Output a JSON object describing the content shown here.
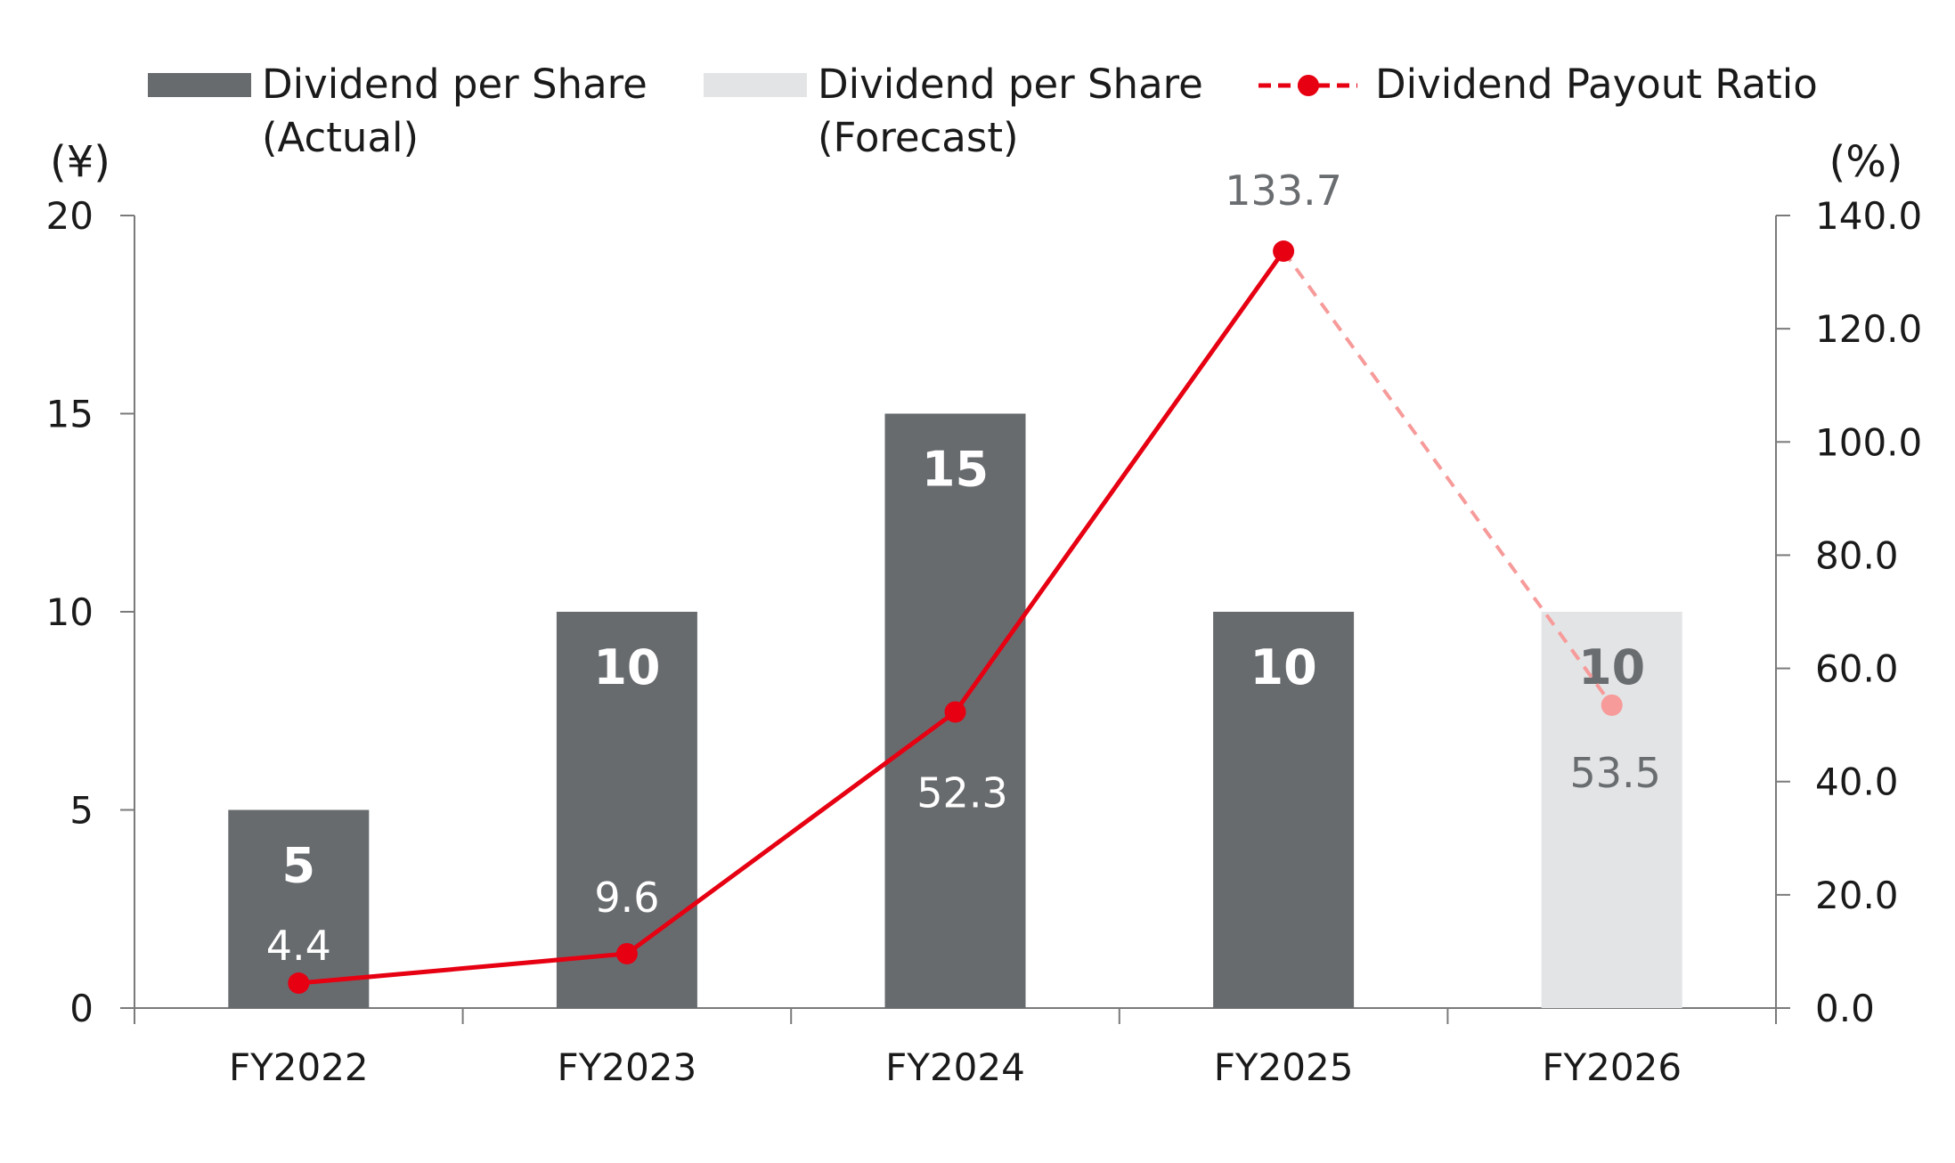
{
  "chart_data": {
    "type": "bar",
    "categories": [
      "FY2022",
      "FY2023",
      "FY2024",
      "FY2025",
      "FY2026"
    ],
    "series": [
      {
        "name": "Dividend per Share (Actual)",
        "legend_lines": [
          "Dividend per Share",
          "(Actual)"
        ],
        "kind": "bar",
        "axis": "left",
        "values": [
          5,
          10,
          15,
          10,
          null
        ],
        "color": "#686b6e"
      },
      {
        "name": "Dividend per Share (Forecast)",
        "legend_lines": [
          "Dividend per Share",
          "(Forecast)"
        ],
        "kind": "bar",
        "axis": "left",
        "values": [
          null,
          null,
          null,
          null,
          10
        ],
        "color": "#e3e4e5"
      },
      {
        "name": "Dividend Payout Ratio",
        "legend_lines": [
          "Dividend Payout Ratio"
        ],
        "kind": "line",
        "axis": "right",
        "values": [
          4.4,
          9.6,
          52.3,
          133.7,
          53.5
        ],
        "labels": [
          "4.4",
          "9.6",
          "52.3",
          "133.7",
          "53.5"
        ],
        "color": "#e60012",
        "forecast_color": "#f79a9a",
        "forecast_from_index": 3
      }
    ],
    "y_left": {
      "unit_label": "(¥)",
      "ylim": [
        0,
        20
      ],
      "ticks": [
        0,
        5,
        10,
        15,
        20
      ],
      "tick_labels": [
        "0",
        "5",
        "10",
        "15",
        "20"
      ]
    },
    "y_right": {
      "unit_label": "(%)",
      "ylim": [
        0,
        140
      ],
      "ticks": [
        0,
        20,
        40,
        60,
        80,
        100,
        120,
        140
      ],
      "tick_labels": [
        "0.0",
        "20.0",
        "40.0",
        "60.0",
        "80.0",
        "100.0",
        "120.0",
        "140.0"
      ]
    },
    "legend_position": "top",
    "grid": false
  }
}
